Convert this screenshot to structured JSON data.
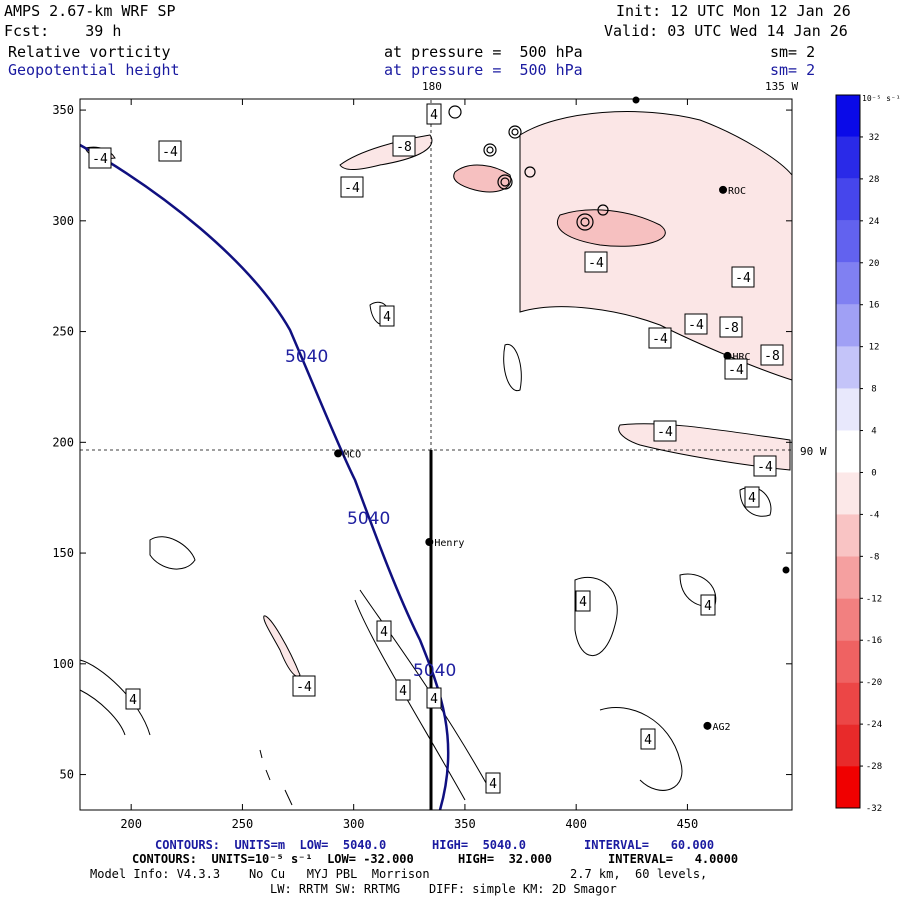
{
  "header": {
    "model": "AMPS 2.67-km WRF SP",
    "init": "Init: 12 UTC Mon 12 Jan 26",
    "fcst": "Fcst:    39 h",
    "valid": "Valid: 03 UTC Wed 14 Jan 26",
    "field1": "Relative vorticity",
    "field1_level": "at pressure =  500 hPa",
    "field1_sm": "sm= 2",
    "field2": "Geopotential height",
    "field2_level": "at pressure =  500 hPa",
    "field2_sm": "sm= 2"
  },
  "geo_labels": {
    "lon180": "180",
    "lon135w": "135 W",
    "lon90w": "90 W"
  },
  "colorbar": {
    "unit": "10⁻⁵ s⁻¹",
    "levels": [
      32,
      28,
      24,
      20,
      16,
      12,
      8,
      4,
      0,
      -4,
      -8,
      -12,
      -16,
      -20,
      -24,
      -28,
      -32
    ],
    "colors": [
      "#0a0ae8",
      "#2a2ae8",
      "#4646ec",
      "#6262ef",
      "#8080f2",
      "#a0a0f5",
      "#c4c4f9",
      "#e8e8fc",
      "#ffffff",
      "#fce8e8",
      "#f9c4c4",
      "#f5a0a0",
      "#f28080",
      "#ef6262",
      "#ec4646",
      "#e82a2a",
      "#f00000"
    ]
  },
  "stations": [
    {
      "name": "MCO"
    },
    {
      "name": "Henry"
    },
    {
      "name": "ROC"
    },
    {
      "name": "HRC"
    },
    {
      "name": "AG2"
    }
  ],
  "contour_labels": {
    "height": "5040",
    "vort_pos": "4",
    "vort_neg4": "-4",
    "vort_neg8": "-8"
  },
  "chart_data": {
    "type": "contour",
    "title": "AMPS 2.67-km WRF SP - 500 hPa relative vorticity and geopotential height",
    "x_ticks": [
      200,
      250,
      300,
      350,
      400,
      450
    ],
    "y_ticks": [
      350,
      300,
      250,
      200,
      150,
      100,
      50
    ],
    "xlim": [
      177,
      497
    ],
    "ylim": [
      34,
      355
    ],
    "height_contour_value": 5040,
    "vorticity_interval": 4,
    "stations": [
      {
        "name": "MCO",
        "x": 293,
        "y": 195
      },
      {
        "name": "Henry",
        "x": 334,
        "y": 155
      },
      {
        "name": "ROC",
        "x": 466,
        "y": 314
      },
      {
        "name": "HRC",
        "x": 468,
        "y": 239
      },
      {
        "name": "AG2",
        "x": 459,
        "y": 72
      }
    ]
  },
  "footer": {
    "line1_a": "CONTOURS:  UNITS=m  LOW=  5040.0",
    "line1_b": "HIGH=  5040.0",
    "line1_c": "INTERVAL=   60.000",
    "line2_a": "CONTOURS:  UNITS=10⁻⁵ s⁻¹  LOW= -32.000",
    "line2_b": "HIGH=  32.000",
    "line2_c": "INTERVAL=   4.0000",
    "line3_a": "Model Info: V4.3.3    No Cu   MYJ PBL  Morrison",
    "line3_b": "2.7 km,  60 levels,",
    "line4": "LW: RRTM SW: RRTMG    DIFF: simple KM: 2D Smagor"
  }
}
